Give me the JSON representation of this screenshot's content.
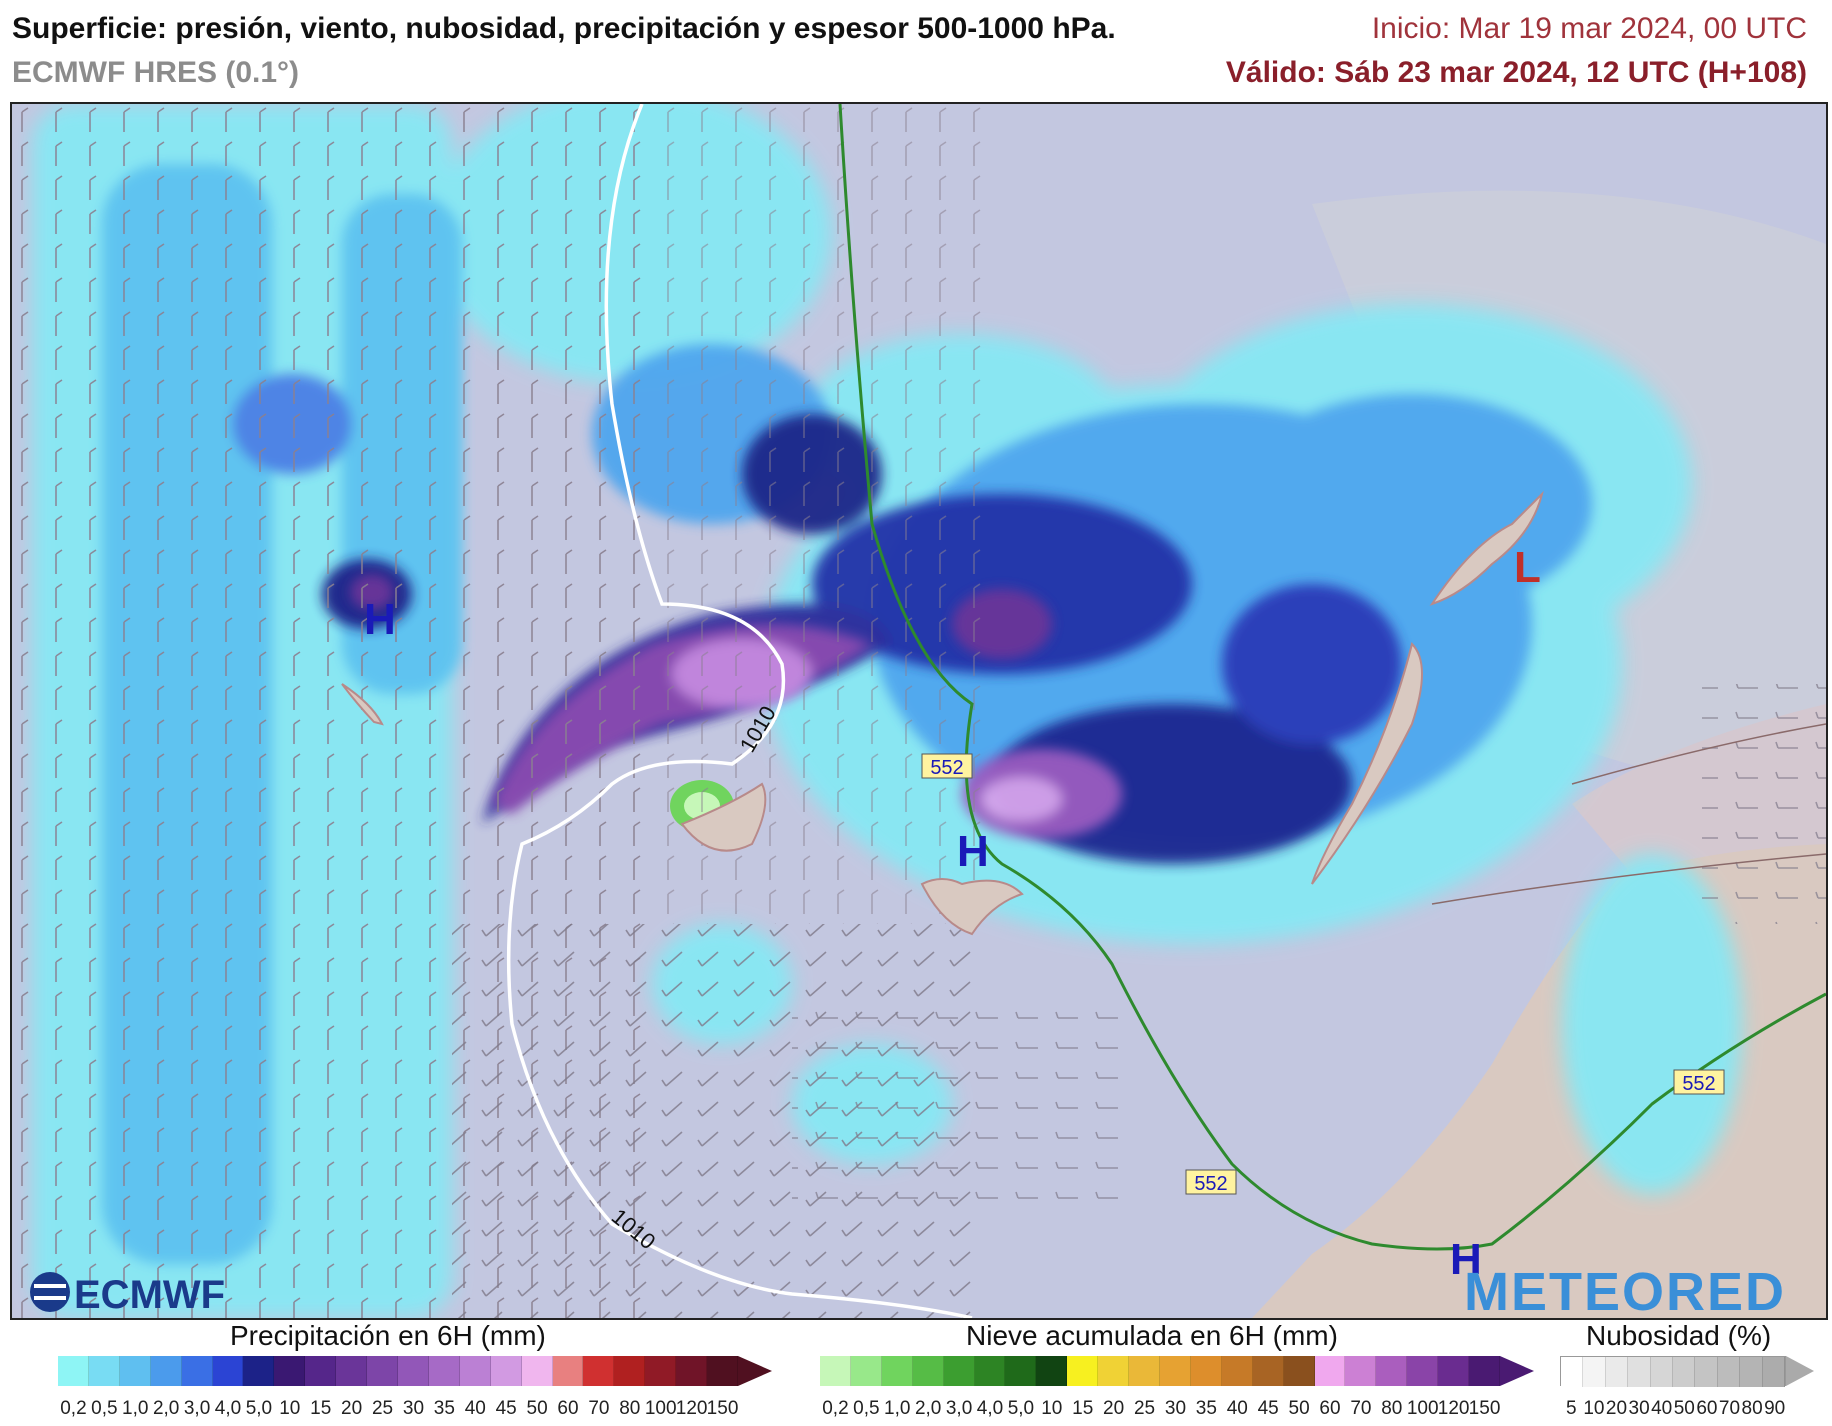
{
  "header": {
    "title": "Superficie: presión, viento, nubosidad, precipitación y espesor 500-1000 hPa.",
    "model": "ECMWF HRES (0.1°)",
    "init": "Inicio: Mar 19 mar 2024, 00 UTC",
    "valid": "Válido: Sáb 23 mar 2024, 12 UTC (H+108)"
  },
  "map": {
    "isobar_label_1": "1010",
    "isobar_label_2": "1010",
    "thickness_label_1": "552",
    "thickness_label_2": "552",
    "thickness_label_3": "552",
    "pressure_centers": [
      "H",
      "H",
      "H",
      "L"
    ],
    "logo_left": "ECMWF",
    "logo_right": "METEORED"
  },
  "colors": {
    "sea": "#c3c7e0",
    "land": "#d9c9c1",
    "isobar": "#ffffff",
    "thickness": "#2e8a2e",
    "high_label": "#1a1ab8",
    "low_label": "#c0302a"
  },
  "legend": {
    "precip": {
      "title": "Precipitación en 6H (mm)",
      "ticks": [
        "0,2",
        "0,5",
        "1,0",
        "2,0",
        "3,0",
        "4,0",
        "5,0",
        "10",
        "15",
        "20",
        "25",
        "30",
        "35",
        "40",
        "45",
        "50",
        "60",
        "70",
        "80",
        "100",
        "120",
        "150"
      ],
      "colors": [
        "#8ef5f5",
        "#78dcf3",
        "#5fbff0",
        "#4b9bec",
        "#3a6fe5",
        "#2b44d4",
        "#1c2288",
        "#3a1872",
        "#55268a",
        "#6a3599",
        "#7d45a8",
        "#9257b8",
        "#a66ac6",
        "#bb80d4",
        "#d29ae2",
        "#f0b6ee",
        "#e88080",
        "#d03030",
        "#b02020",
        "#901a26",
        "#701428",
        "#501020"
      ]
    },
    "snow": {
      "title": "Nieve acumulada en 6H (mm)",
      "ticks": [
        "0,2",
        "0,5",
        "1,0",
        "2,0",
        "3,0",
        "4,0",
        "5,0",
        "10",
        "15",
        "20",
        "25",
        "30",
        "35",
        "40",
        "45",
        "50",
        "60",
        "70",
        "80",
        "100",
        "120",
        "150"
      ],
      "colors": [
        "#c6f7b8",
        "#98e88a",
        "#70d45e",
        "#56bc46",
        "#3c9e30",
        "#2d8424",
        "#1f6a1a",
        "#114412",
        "#f7f020",
        "#f0d235",
        "#eab838",
        "#e6a232",
        "#dd8e2c",
        "#c67a28",
        "#a86424",
        "#8a501e",
        "#f0a8ee",
        "#cc80d4",
        "#aa5ebe",
        "#8a44a8",
        "#6a2c90",
        "#4a1a72"
      ]
    },
    "cloud": {
      "title": "Nubosidad (%)",
      "ticks": [
        "5",
        "10",
        "20",
        "30",
        "40",
        "50",
        "60",
        "70",
        "80",
        "90"
      ],
      "colors": [
        "#ffffff",
        "#f4f4f4",
        "#eaeaea",
        "#e0e0e0",
        "#d6d6d6",
        "#cccccc",
        "#c4c4c4",
        "#bcbcbc",
        "#b4b4b4",
        "#acacac"
      ]
    }
  }
}
